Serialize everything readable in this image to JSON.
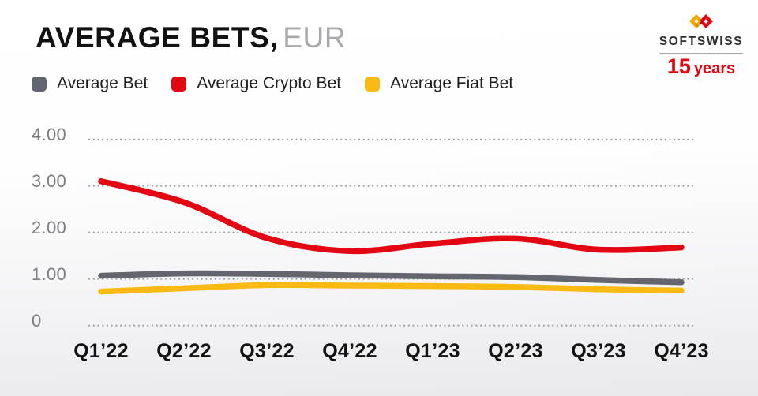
{
  "header": {
    "title": "AVERAGE BETS,",
    "title_unit": "EUR"
  },
  "logo": {
    "brand": "SOFTSWISS",
    "anniversary_number": "15",
    "anniversary_word": "years",
    "brand_color": "#2d2d2d",
    "accent_red": "#e30613",
    "accent_yellow": "#f7a600"
  },
  "chart_data": {
    "type": "line",
    "title": "AVERAGE BETS, EUR",
    "unit": "EUR",
    "categories": [
      "Q1’22",
      "Q2’22",
      "Q3’22",
      "Q4’22",
      "Q1’23",
      "Q2’23",
      "Q3’23",
      "Q4’23"
    ],
    "series": [
      {
        "name": "Average Bet",
        "color": "#63666F",
        "values": [
          1.07,
          1.12,
          1.11,
          1.08,
          1.06,
          1.04,
          0.98,
          0.93
        ]
      },
      {
        "name": "Average Crypto Bet",
        "color": "#E30613",
        "values": [
          3.1,
          2.65,
          1.88,
          1.6,
          1.76,
          1.87,
          1.63,
          1.68
        ]
      },
      {
        "name": "Average Fiat Bet",
        "color": "#FBB913",
        "values": [
          0.73,
          0.8,
          0.87,
          0.86,
          0.85,
          0.83,
          0.78,
          0.75
        ]
      }
    ],
    "y_ticks": [
      {
        "label": "4.00",
        "value": 4
      },
      {
        "label": "3.00",
        "value": 3
      },
      {
        "label": "2.00",
        "value": 2
      },
      {
        "label": "1.00",
        "value": 1
      },
      {
        "label": "0",
        "value": 0
      }
    ],
    "ylim": [
      0,
      4
    ],
    "grid": "horizontal-dotted",
    "legend_position": "top-left",
    "xlabel": "",
    "ylabel": ""
  }
}
